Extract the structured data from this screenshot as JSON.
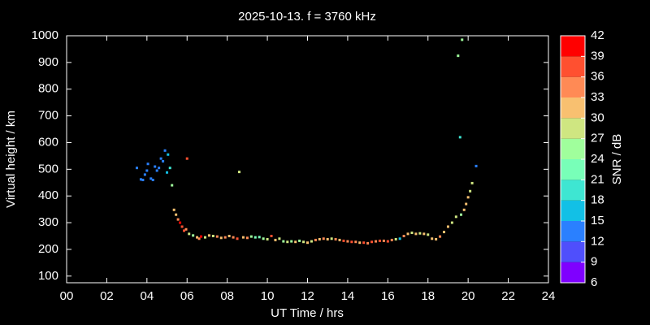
{
  "chart_data": {
    "type": "scatter",
    "title": "2025-10-13. f = 3760 kHz",
    "x_label": "UT Time / hrs",
    "y_label": "Virtual height / km",
    "xlim": [
      0,
      24
    ],
    "xticks": [
      {
        "value": 0,
        "label": "00"
      },
      {
        "value": 2,
        "label": "02"
      },
      {
        "value": 4,
        "label": "04"
      },
      {
        "value": 6,
        "label": "06"
      },
      {
        "value": 8,
        "label": "08"
      },
      10,
      12,
      14,
      16,
      18,
      20,
      22,
      24
    ],
    "ylim": [
      75,
      1000
    ],
    "yticks": [
      100,
      200,
      300,
      400,
      500,
      600,
      700,
      800,
      900,
      1000
    ],
    "x": [
      3.5,
      3.7,
      3.8,
      3.9,
      4.0,
      4.05,
      4.2,
      4.3,
      4.4,
      4.5,
      4.6,
      4.7,
      4.8,
      4.9,
      5.0,
      5.05,
      5.15,
      5.25,
      5.35,
      5.45,
      5.55,
      5.65,
      5.75,
      5.85,
      5.95,
      6.0,
      6.1,
      6.3,
      6.5,
      6.6,
      6.7,
      6.9,
      7.1,
      7.3,
      7.5,
      7.7,
      7.9,
      8.1,
      8.3,
      8.5,
      8.6,
      8.8,
      9.0,
      9.2,
      9.4,
      9.6,
      9.8,
      10.0,
      10.2,
      10.4,
      10.6,
      10.8,
      11.0,
      11.2,
      11.4,
      11.6,
      11.8,
      12.0,
      12.2,
      12.4,
      12.6,
      12.8,
      13.0,
      13.2,
      13.4,
      13.6,
      13.8,
      14.0,
      14.2,
      14.4,
      14.6,
      14.8,
      15.0,
      15.2,
      15.4,
      15.6,
      15.8,
      16.0,
      16.2,
      16.4,
      16.6,
      16.8,
      17.0,
      17.2,
      17.4,
      17.6,
      17.8,
      18.0,
      18.2,
      18.4,
      18.6,
      18.8,
      19.0,
      19.2,
      19.4,
      19.5,
      19.6,
      19.65,
      19.7,
      19.8,
      19.9,
      20.0,
      20.1,
      20.2,
      20.4
    ],
    "values": [
      505,
      462,
      460,
      480,
      495,
      520,
      465,
      460,
      510,
      495,
      505,
      540,
      530,
      570,
      488,
      555,
      505,
      440,
      348,
      330,
      312,
      300,
      285,
      270,
      275,
      540,
      258,
      252,
      245,
      240,
      248,
      245,
      252,
      250,
      248,
      243,
      245,
      250,
      245,
      240,
      490,
      245,
      243,
      248,
      245,
      246,
      240,
      238,
      250,
      235,
      240,
      230,
      228,
      230,
      228,
      232,
      228,
      225,
      230,
      235,
      238,
      240,
      238,
      240,
      238,
      235,
      232,
      230,
      228,
      228,
      225,
      225,
      223,
      228,
      230,
      232,
      232,
      230,
      235,
      238,
      240,
      250,
      258,
      262,
      258,
      260,
      258,
      255,
      240,
      238,
      248,
      265,
      285,
      300,
      322,
      925,
      620,
      330,
      985,
      348,
      370,
      395,
      418,
      448,
      512
    ],
    "snr": [
      12,
      12,
      12,
      12,
      12,
      12,
      12,
      12,
      12,
      12,
      12,
      12,
      12,
      12,
      15,
      15,
      18,
      24,
      30,
      30,
      33,
      39,
      36,
      36,
      33,
      36,
      27,
      24,
      30,
      33,
      39,
      27,
      30,
      27,
      33,
      30,
      33,
      30,
      33,
      36,
      27,
      30,
      33,
      24,
      21,
      21,
      24,
      27,
      36,
      30,
      27,
      24,
      27,
      24,
      30,
      24,
      27,
      30,
      27,
      33,
      30,
      33,
      30,
      27,
      33,
      30,
      36,
      33,
      36,
      33,
      30,
      36,
      33,
      36,
      33,
      36,
      33,
      36,
      33,
      27,
      15,
      33,
      30,
      27,
      30,
      27,
      30,
      27,
      30,
      30,
      33,
      30,
      30,
      27,
      27,
      24,
      18,
      24,
      24,
      30,
      30,
      30,
      27,
      27,
      12
    ],
    "colorbar": {
      "label": "SNR / dB",
      "ticks": [
        6,
        9,
        12,
        15,
        18,
        21,
        24,
        27,
        30,
        33,
        36,
        39,
        42
      ],
      "colors": [
        "#7f00ff",
        "#4f4ffc",
        "#2a80ff",
        "#12c0e6",
        "#3ee6d2",
        "#78ffb8",
        "#a0ff9c",
        "#cfe681",
        "#f8c070",
        "#ff8a55",
        "#ff5030",
        "#ff0000"
      ]
    }
  }
}
